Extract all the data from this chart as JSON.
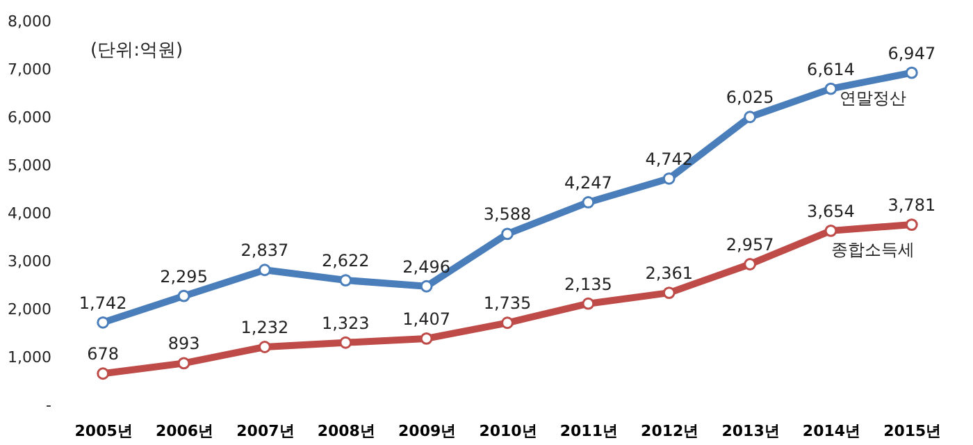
{
  "chart_data": {
    "type": "line",
    "categories": [
      "2005년",
      "2006년",
      "2007년",
      "2008년",
      "2009년",
      "2010년",
      "2011년",
      "2012년",
      "2013년",
      "2014년",
      "2015년"
    ],
    "series": [
      {
        "name": "연말정산",
        "color": "#4a7ebb",
        "values": [
          1742,
          2295,
          2837,
          2622,
          2496,
          3588,
          4247,
          4742,
          6025,
          6614,
          6947
        ],
        "value_labels": [
          "1,742",
          "2,295",
          "2,837",
          "2,622",
          "2,496",
          "3,588",
          "4,247",
          "4,742",
          "6,025",
          "6,614",
          "6,947"
        ]
      },
      {
        "name": "종합소득세",
        "color": "#be4b48",
        "values": [
          678,
          893,
          1232,
          1323,
          1407,
          1735,
          2135,
          2361,
          2957,
          3654,
          3781
        ],
        "value_labels": [
          "678",
          "893",
          "1,232",
          "1,323",
          "1,407",
          "1,735",
          "2,135",
          "2,361",
          "2,957",
          "3,654",
          "3,781"
        ]
      }
    ],
    "ylim": [
      0,
      8000
    ],
    "yticks": [
      {
        "value": 0,
        "label": "-"
      },
      {
        "value": 1000,
        "label": "1,000"
      },
      {
        "value": 2000,
        "label": "2,000"
      },
      {
        "value": 3000,
        "label": "3,000"
      },
      {
        "value": 4000,
        "label": "4,000"
      },
      {
        "value": 5000,
        "label": "5,000"
      },
      {
        "value": 6000,
        "label": "6,000"
      },
      {
        "value": 7000,
        "label": "7,000"
      },
      {
        "value": 8000,
        "label": "8,000"
      }
    ],
    "annotations": [
      "(단위:억원)"
    ],
    "grid": false,
    "legend": false,
    "marker": "circle",
    "line_style": "solid"
  }
}
